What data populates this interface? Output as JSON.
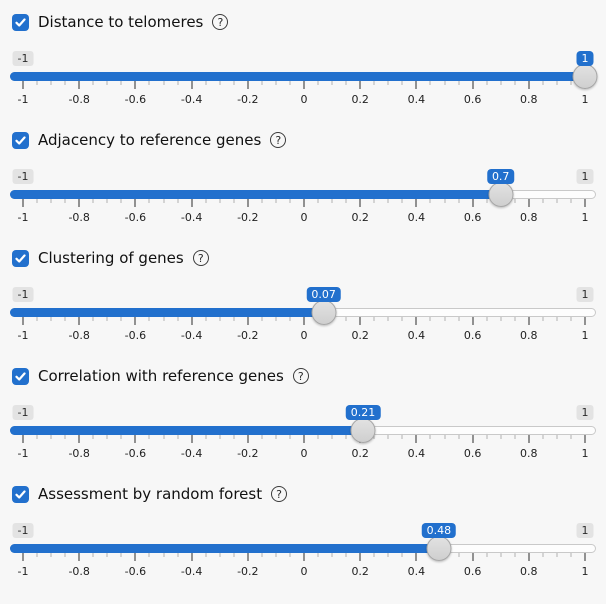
{
  "page": {
    "background": "#f7f7f7",
    "accent": "#2270cd"
  },
  "scale": {
    "min": -1,
    "max": 1,
    "minor_step": 0.05,
    "major_step": 0.2,
    "tick_labels": [
      "-1",
      "-0.8",
      "-0.6",
      "-0.4",
      "-0.2",
      "0",
      "0.2",
      "0.4",
      "0.6",
      "0.8",
      "1"
    ]
  },
  "icons": {
    "help_icon": "?",
    "checkbox_check": "check-mark"
  },
  "sliders": [
    {
      "label": "Distance to telomeres",
      "checked": true,
      "value": 1,
      "value_label": "1",
      "min_label": "-1",
      "max_label": "1",
      "max_label_visible": false,
      "help_icon": "?"
    },
    {
      "label": "Adjacency to reference genes",
      "checked": true,
      "value": 0.7,
      "value_label": "0.7",
      "min_label": "-1",
      "max_label": "1",
      "max_label_visible": true,
      "help_icon": "?"
    },
    {
      "label": "Clustering of genes",
      "checked": true,
      "value": 0.07,
      "value_label": "0.07",
      "min_label": "-1",
      "max_label": "1",
      "max_label_visible": true,
      "help_icon": "?"
    },
    {
      "label": "Correlation with reference genes",
      "checked": true,
      "value": 0.21,
      "value_label": "0.21",
      "min_label": "-1",
      "max_label": "1",
      "max_label_visible": true,
      "help_icon": "?"
    },
    {
      "label": "Assessment by random forest",
      "checked": true,
      "value": 0.48,
      "value_label": "0.48",
      "min_label": "-1",
      "max_label": "1",
      "max_label_visible": true,
      "help_icon": "?"
    }
  ]
}
